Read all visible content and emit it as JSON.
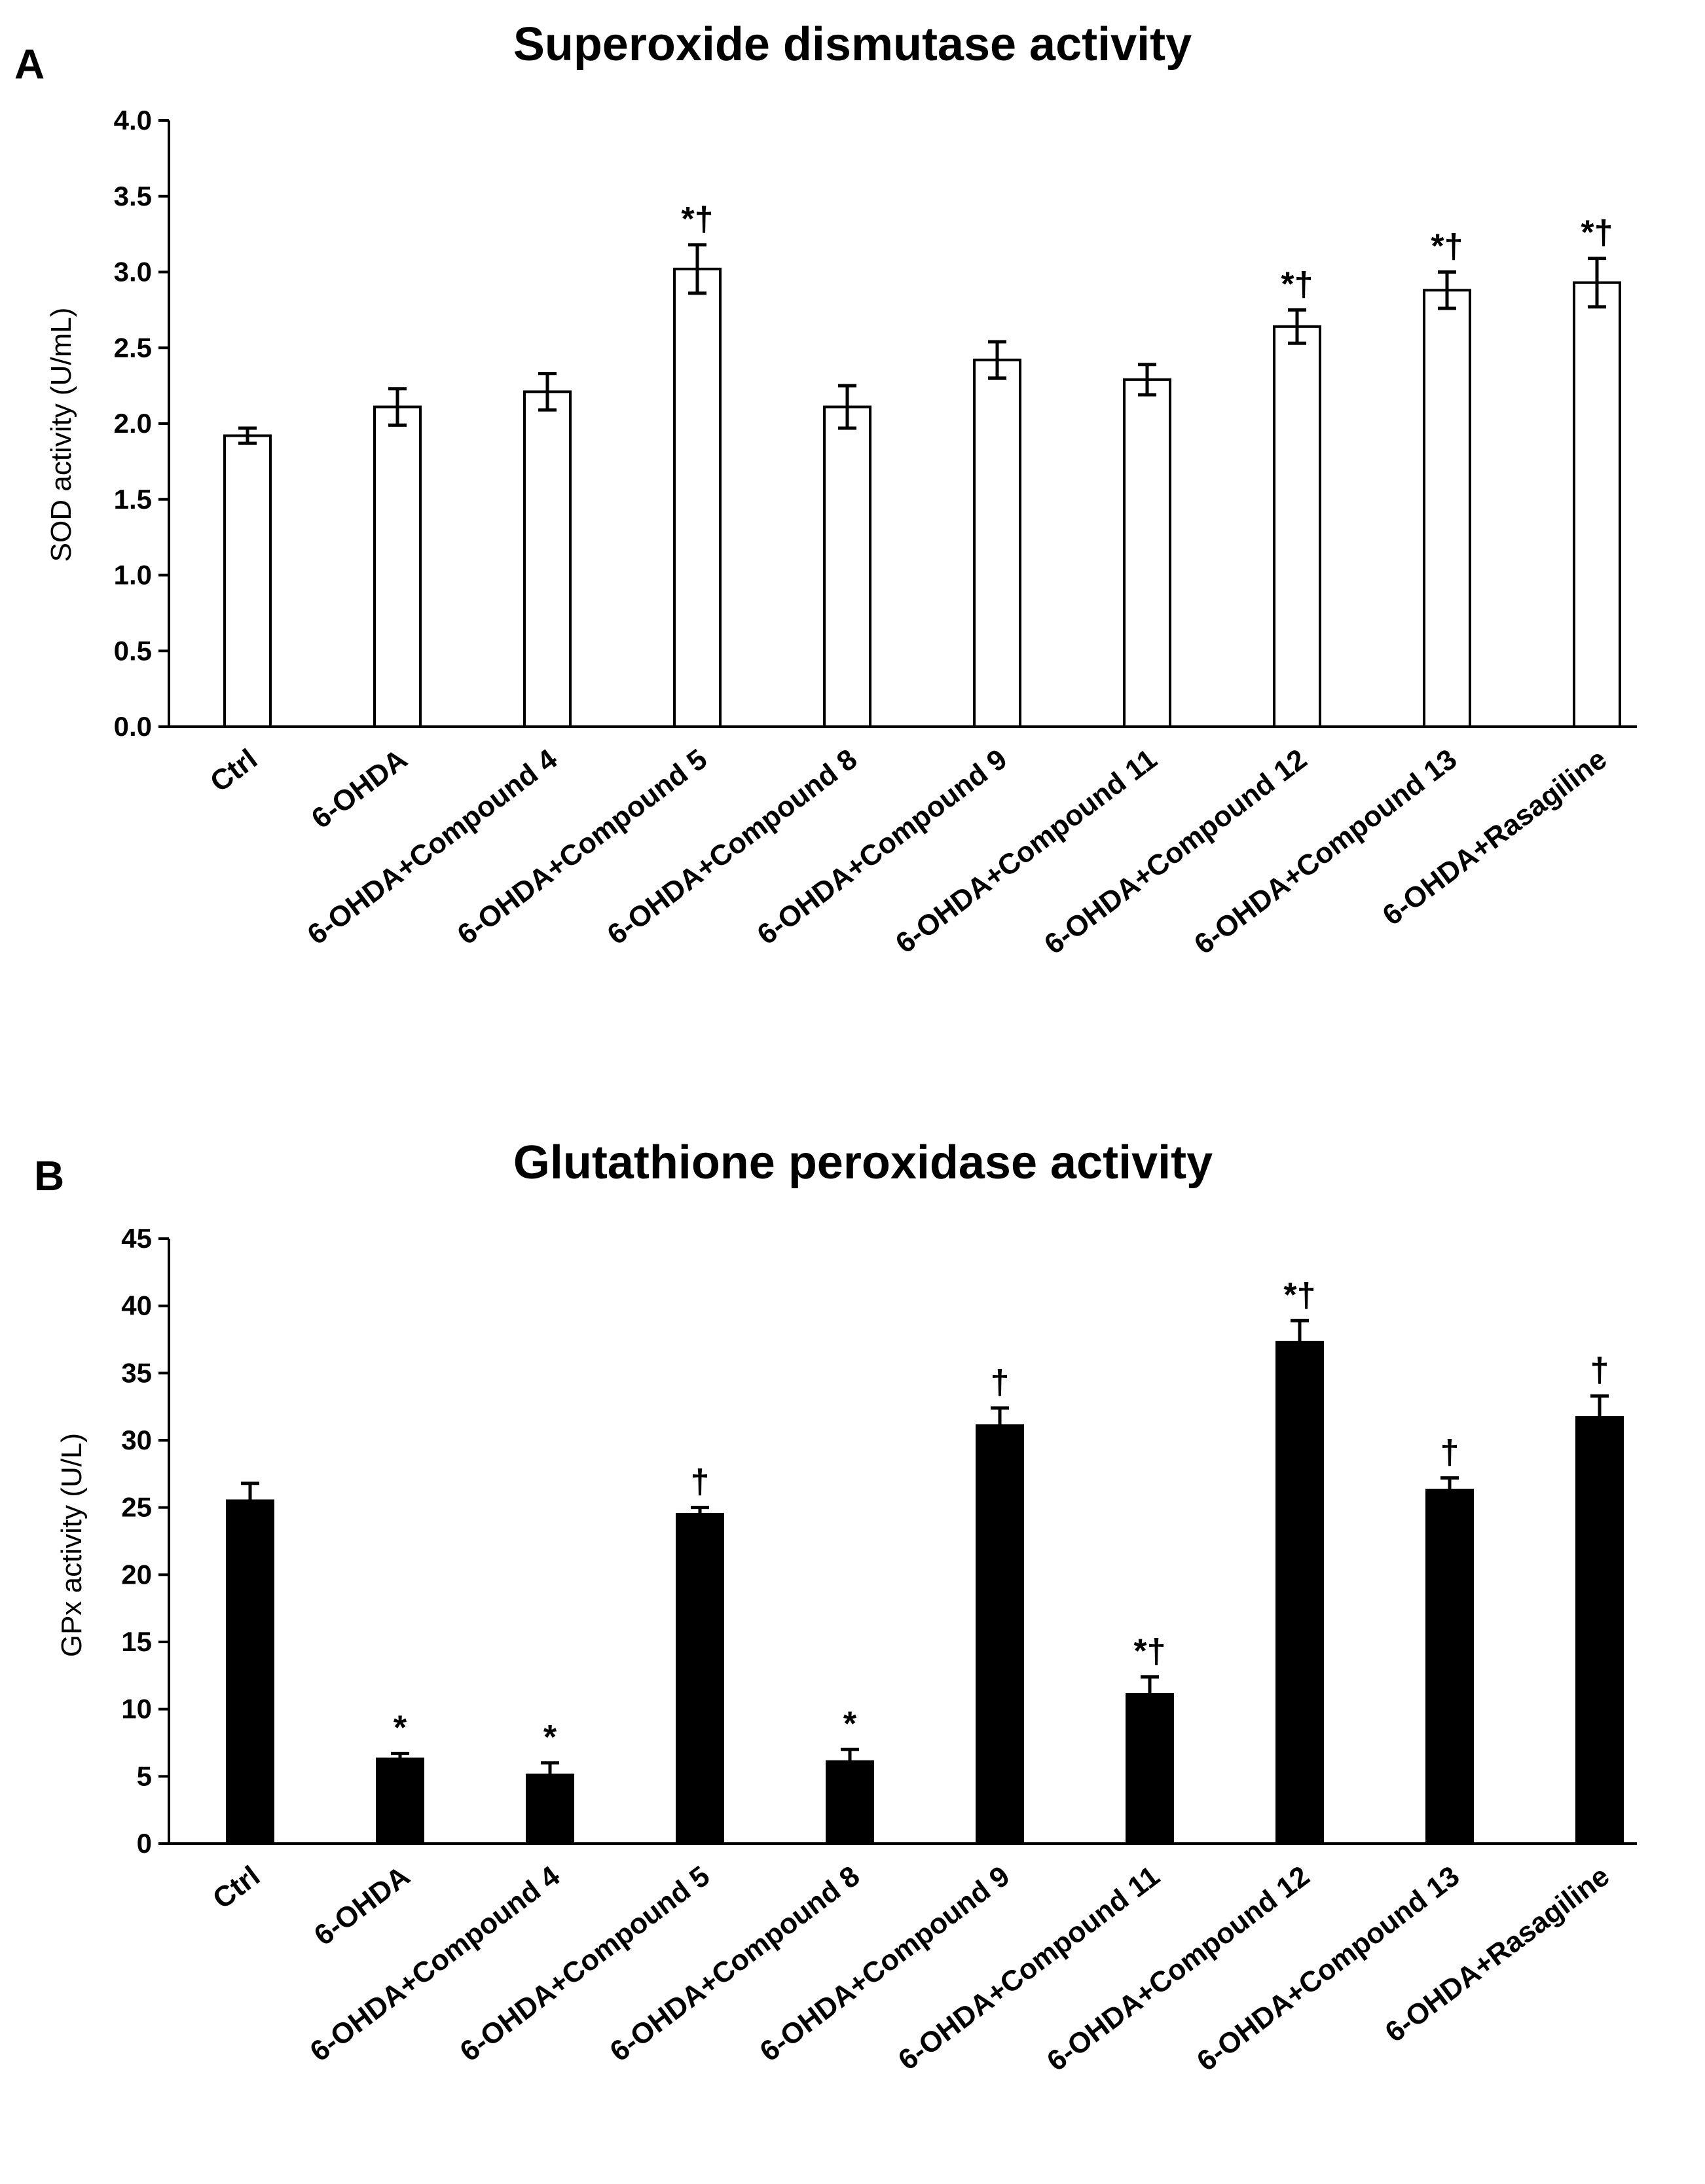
{
  "chart_data": [
    {
      "type": "bar",
      "panel": "A",
      "title": "Superoxide dismutase activity",
      "xlabel": "",
      "ylabel": "SOD activity (U/mL)",
      "ylim": [
        0,
        4.0
      ],
      "yticks": [
        "0.0",
        "0.5",
        "1.0",
        "1.5",
        "2.0",
        "2.5",
        "3.0",
        "3.5",
        "4.0"
      ],
      "categories": [
        "Ctrl",
        "6-OHDA",
        "6-OHDA+Compound 4",
        "6-OHDA+Compound 5",
        "6-OHDA+Compound 8",
        "6-OHDA+Compound 9",
        "6-OHDA+Compound 11",
        "6-OHDA+Compound 12",
        "6-OHDA+Compound 13",
        "6-OHDA+Rasagiline"
      ],
      "values": [
        1.92,
        2.11,
        2.21,
        3.02,
        2.11,
        2.42,
        2.29,
        2.64,
        2.88,
        2.93
      ],
      "errors": [
        0.05,
        0.12,
        0.12,
        0.16,
        0.14,
        0.12,
        0.1,
        0.11,
        0.12,
        0.16
      ],
      "annotations": [
        "",
        "",
        "",
        "*†",
        "",
        "",
        "",
        "*†",
        "*†",
        "*†"
      ],
      "bar_fill": "#ffffff",
      "grid": false
    },
    {
      "type": "bar",
      "panel": "B",
      "title": "Glutathione peroxidase activity",
      "xlabel": "",
      "ylabel": "GPx activity (U/L)",
      "ylim": [
        0,
        45
      ],
      "yticks": [
        "0",
        "5",
        "10",
        "15",
        "20",
        "25",
        "30",
        "35",
        "40",
        "45"
      ],
      "categories": [
        "Ctrl",
        "6-OHDA",
        "6-OHDA+Compound 4",
        "6-OHDA+Compound 5",
        "6-OHDA+Compound 8",
        "6-OHDA+Compound 9",
        "6-OHDA+Compound 11",
        "6-OHDA+Compound 12",
        "6-OHDA+Compound 13",
        "6-OHDA+Rasagiline"
      ],
      "values": [
        25.5,
        6.3,
        5.1,
        24.5,
        6.1,
        31.1,
        11.1,
        37.3,
        26.3,
        31.7
      ],
      "errors": [
        1.3,
        0.4,
        0.9,
        0.5,
        0.9,
        1.3,
        1.3,
        1.6,
        0.9,
        1.6
      ],
      "annotations": [
        "",
        "*",
        "*",
        "†",
        "*",
        "†",
        "*†",
        "*†",
        "†",
        "†"
      ],
      "bar_fill": "#000000",
      "grid": false
    }
  ]
}
